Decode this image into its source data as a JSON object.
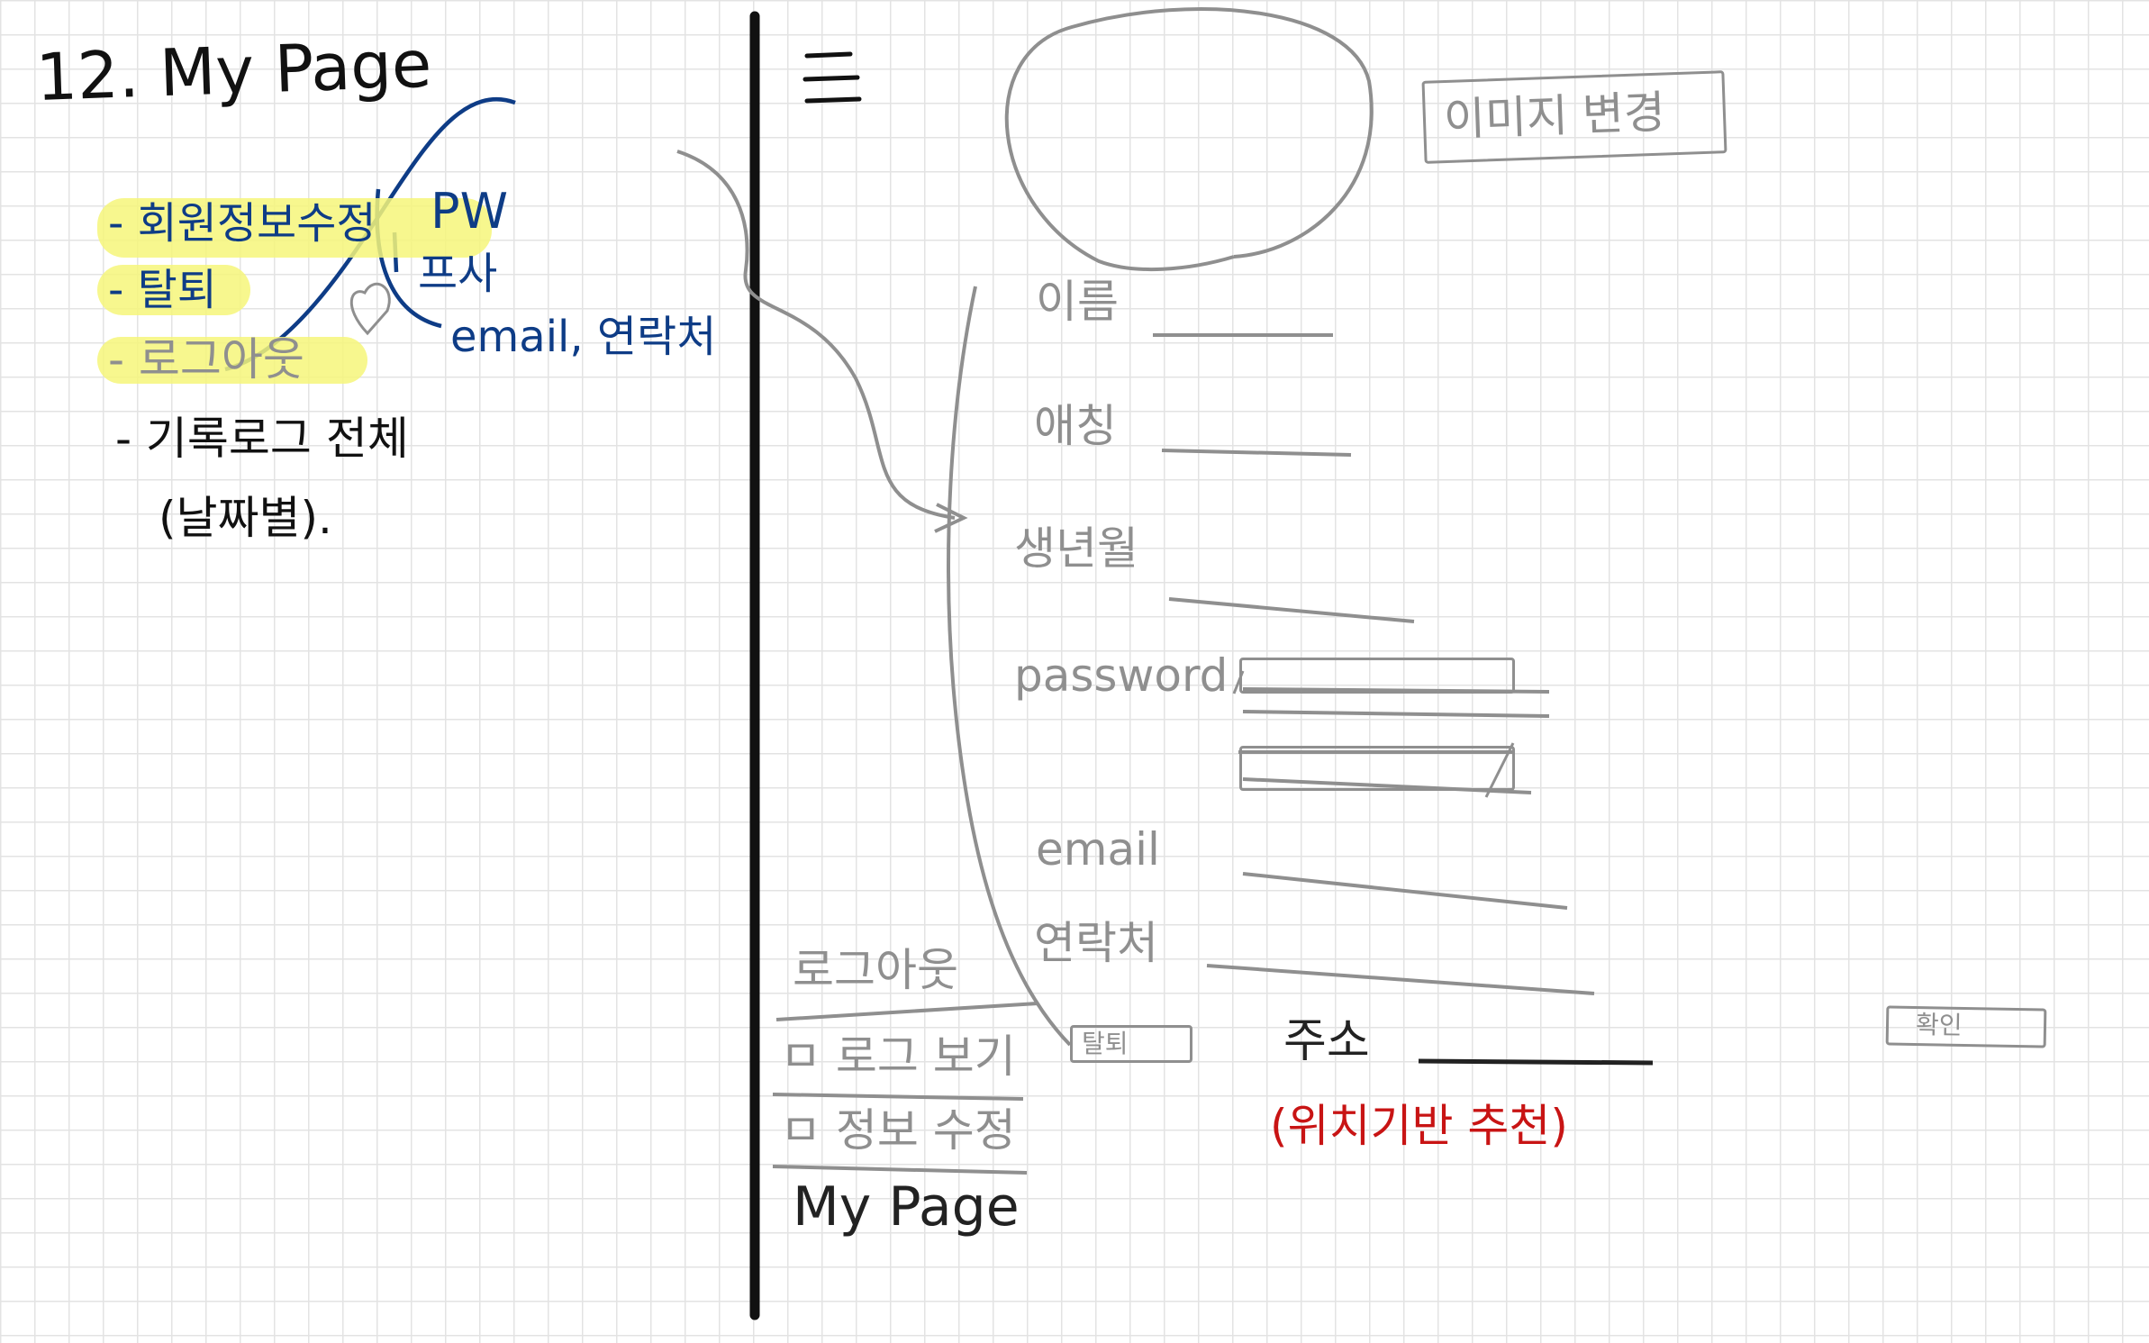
{
  "notes": {
    "title": "12. My Page",
    "items": [
      {
        "text": "- 회원정보수정",
        "highlight": true
      },
      {
        "text": "- 탈퇴",
        "highlight": true
      },
      {
        "text": "- 로그아웃",
        "highlight": true
      },
      {
        "text": "- 기록로그 전체"
      }
    ],
    "items_sub": "(날짜별).",
    "info_fields": [
      "PW",
      "프사",
      "email, 연락처"
    ]
  },
  "wireframe": {
    "hamburger_icon": "hamburger-menu-icon",
    "change_image_button": "이미지 변경",
    "fields": {
      "name_label": "이름",
      "nickname_label": "애칭",
      "birthday_label": "생년월",
      "password_label": "password",
      "email_label": "email",
      "contact_label": "연락처",
      "address_label": "주소",
      "address_hint": "(위치기반 추천)"
    },
    "withdraw_button": "탈퇴",
    "confirm_button": "확인"
  },
  "side_menu": {
    "items": [
      "로그아웃",
      "ㅁ 로그 보기",
      "ㅁ 정보 수정"
    ],
    "footer": "My Page"
  },
  "colors": {
    "marker_highlight": "#f6f67a",
    "ink_blue": "#0e3c86",
    "ink_gray": "#8f8f8f",
    "ink_red": "#c81414"
  }
}
